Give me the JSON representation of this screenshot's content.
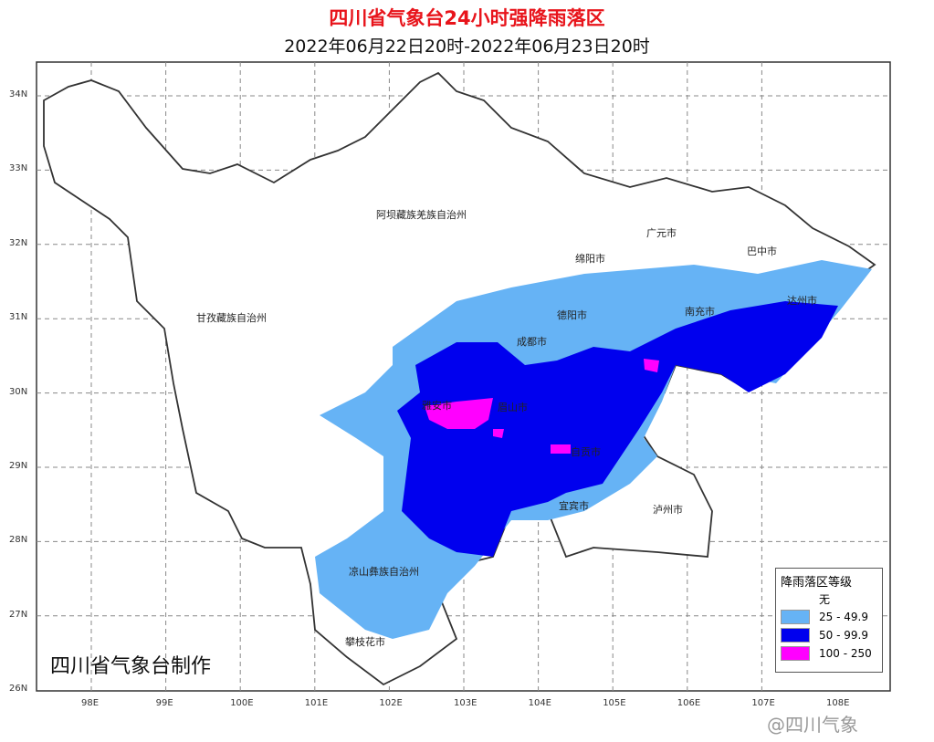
{
  "title": "四川省气象台24小时强降雨落区",
  "subtitle": "2022年06月22日20时-2022年06月23日20时",
  "axes": {
    "lon": [
      "98E",
      "99E",
      "100E",
      "101E",
      "102E",
      "103E",
      "104E",
      "105E",
      "106E",
      "107E",
      "108E"
    ],
    "lat": [
      "34N",
      "33N",
      "32N",
      "31N",
      "30N",
      "29N",
      "28N",
      "27N",
      "26N"
    ]
  },
  "places": [
    "阿坝藏族羌族自治州",
    "甘孜藏族自治州",
    "绵阳市",
    "广元市",
    "巴中市",
    "达州市",
    "南充市",
    "德阳市",
    "成都市",
    "雅安市",
    "眉山市",
    "自贡市",
    "宜宾市",
    "泸州市",
    "凉山彝族自治州",
    "攀枝花市"
  ],
  "legend": {
    "title": "降雨落区等级",
    "items": [
      {
        "label": "无",
        "color": "#ffffff"
      },
      {
        "label": "25 - 49.9",
        "color": "#66b3f5"
      },
      {
        "label": "50 - 99.9",
        "color": "#0000ee"
      },
      {
        "label": "100 - 250",
        "color": "#ff00ff"
      }
    ]
  },
  "credit": "四川省气象台制作",
  "watermark": "@四川气象"
}
